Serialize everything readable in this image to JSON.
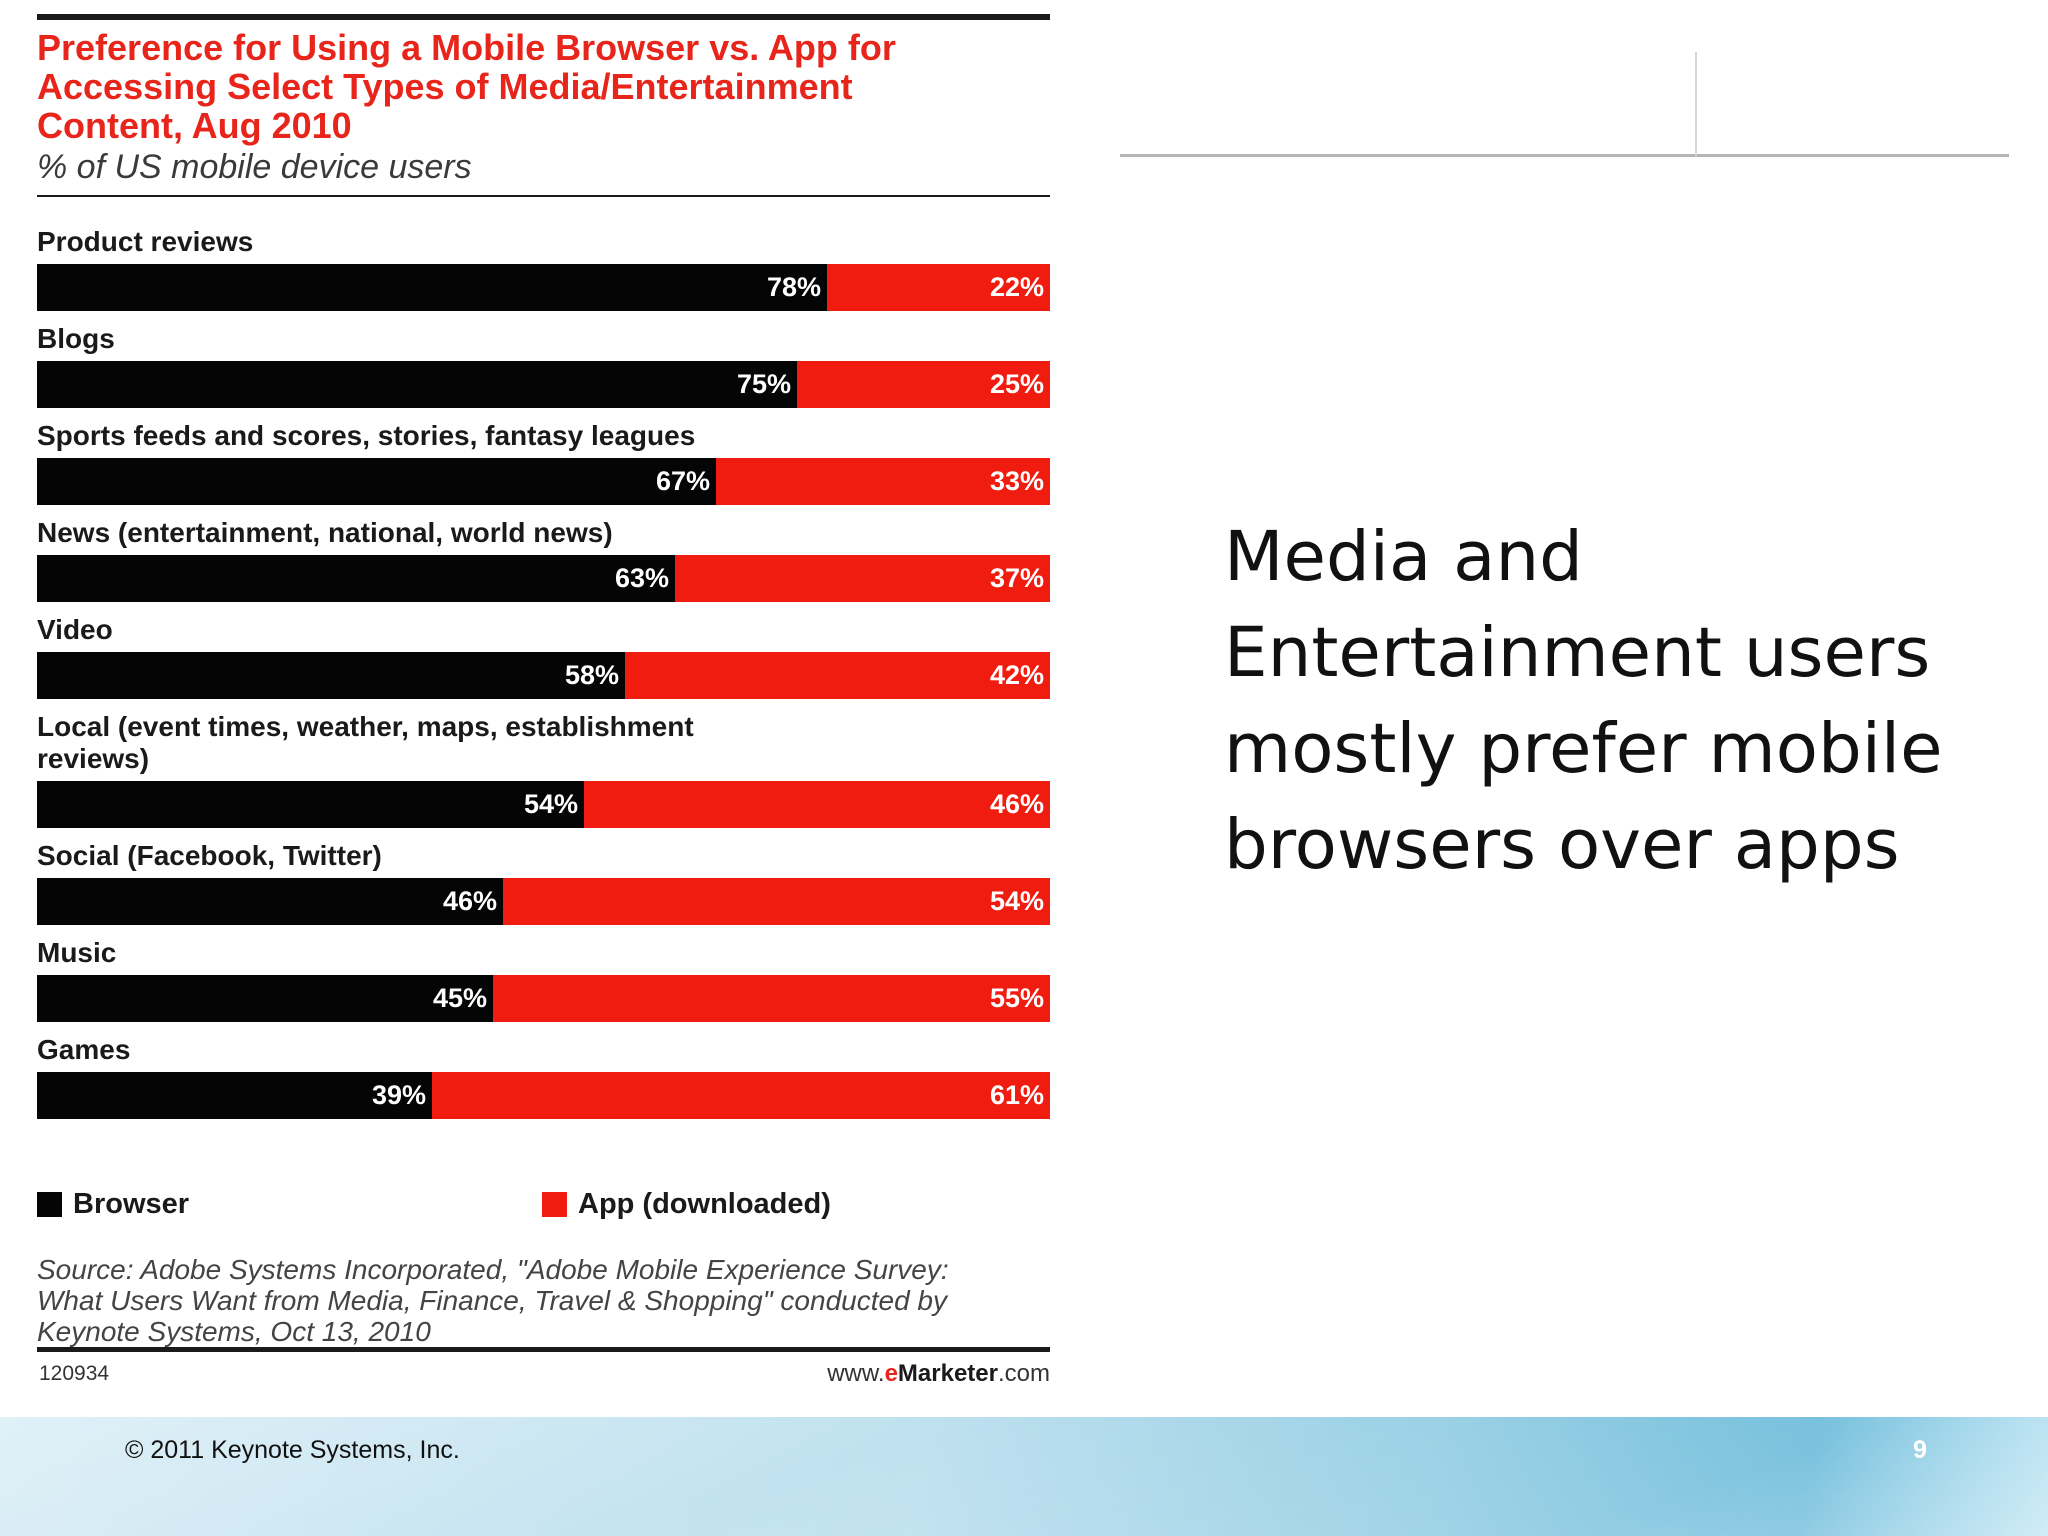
{
  "chart_data": {
    "type": "bar",
    "stacked": true,
    "orientation": "horizontal",
    "title": "Preference for Using a Mobile Browser vs. App for\nAccessing Select Types of Media/Entertainment\nContent, Aug 2010",
    "subtitle": "% of US mobile device users",
    "categories": [
      "Product reviews",
      "Blogs",
      "Sports feeds and scores, stories, fantasy leagues",
      "News (entertainment, national, world news)",
      "Video",
      "Local (event times, weather, maps, establishment\nreviews)",
      "Social (Facebook, Twitter)",
      "Music",
      "Games"
    ],
    "series": [
      {
        "name": "Browser",
        "values": [
          78,
          75,
          67,
          63,
          58,
          54,
          46,
          45,
          39
        ],
        "color": "#050505"
      },
      {
        "name": "App (downloaded)",
        "values": [
          22,
          25,
          33,
          37,
          42,
          46,
          54,
          55,
          61
        ],
        "color": "#ef1c0f"
      }
    ],
    "value_suffix": "%",
    "xlim": [
      0,
      100
    ],
    "legend_position": "bottom",
    "grid": false,
    "source": "Source: Adobe Systems Incorporated, \"Adobe Mobile Experience Survey:\nWhat Users Want from Media, Finance, Travel & Shopping\" conducted by\nKeynote Systems, Oct 13, 2010",
    "chart_id": "120934",
    "brand": {
      "prefix": "www.",
      "accent": "e",
      "name": "Marketer",
      "suffix": ".com"
    }
  },
  "slide": {
    "headline": "Media and Entertainment users mostly prefer mobile browsers over apps",
    "copyright": "© 2011 Keynote Systems, Inc.",
    "page_number": "9"
  },
  "colors": {
    "title_red": "#e8251b",
    "browser_black": "#050505",
    "app_red": "#ef1c0f",
    "footer_blue": "#8fcbe2"
  }
}
